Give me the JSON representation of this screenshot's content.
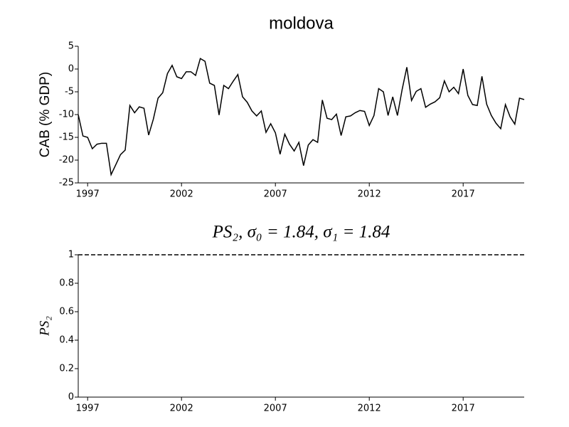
{
  "chart_data": [
    {
      "type": "line",
      "title": "moldova",
      "y_label": "CAB (% GDP)",
      "xlim": [
        1996.5,
        2020.25
      ],
      "xticks": [
        1997,
        2002,
        2007,
        2012,
        2017
      ],
      "ylim": [
        -25,
        5
      ],
      "yticks": [
        -25,
        -20,
        -15,
        -10,
        -5,
        0,
        5
      ],
      "x": [
        1996.5,
        1996.75,
        1997,
        1997.25,
        1997.5,
        1997.75,
        1998,
        1998.25,
        1998.5,
        1998.75,
        1999,
        1999.25,
        1999.5,
        1999.75,
        2000,
        2000.25,
        2000.5,
        2000.75,
        2001,
        2001.25,
        2001.5,
        2001.75,
        2002,
        2002.25,
        2002.5,
        2002.75,
        2003,
        2003.25,
        2003.5,
        2003.75,
        2004,
        2004.25,
        2004.5,
        2004.75,
        2005,
        2005.25,
        2005.5,
        2005.75,
        2006,
        2006.25,
        2006.5,
        2006.75,
        2007,
        2007.25,
        2007.5,
        2007.75,
        2008,
        2008.25,
        2008.5,
        2008.75,
        2009,
        2009.25,
        2009.5,
        2009.75,
        2010,
        2010.25,
        2010.5,
        2010.75,
        2011,
        2011.25,
        2011.5,
        2011.75,
        2012,
        2012.25,
        2012.5,
        2012.75,
        2013,
        2013.25,
        2013.5,
        2013.75,
        2014,
        2014.25,
        2014.5,
        2014.75,
        2015,
        2015.25,
        2015.5,
        2015.75,
        2016,
        2016.25,
        2016.5,
        2016.75,
        2017,
        2017.25,
        2017.5,
        2017.75,
        2018,
        2018.25,
        2018.5,
        2018.75,
        2019,
        2019.25,
        2019.5,
        2019.75,
        2020,
        2020.25
      ],
      "series": [
        {
          "color": "#000000",
          "values": [
            -10,
            -14.7,
            -15,
            -17.5,
            -16.5,
            -16.3,
            -16.3,
            -23.2,
            -21,
            -18.8,
            -17.8,
            -8,
            -9.6,
            -8.3,
            -8.6,
            -14.5,
            -11,
            -6.4,
            -5.2,
            -1,
            0.8,
            -1.7,
            -2.1,
            -0.6,
            -0.6,
            -1.4,
            2.3,
            1.7,
            -3.1,
            -3.6,
            -10.1,
            -3.6,
            -4.3,
            -2.7,
            -1.2,
            -6.1,
            -7.3,
            -9.2,
            -10.3,
            -9.2,
            -13.9,
            -12,
            -14,
            -18.7,
            -14.3,
            -16.5,
            -18,
            -16.1,
            -21.2,
            -16.7,
            -15.5,
            -16.1,
            -6.8,
            -10.8,
            -11.1,
            -9.9,
            -14.6,
            -10.5,
            -10.3,
            -9.6,
            -9.1,
            -9.3,
            -12.4,
            -10.2,
            -4.3,
            -5,
            -10.2,
            -6.1,
            -10.2,
            -4.5,
            0.4,
            -6.9,
            -4.9,
            -4.3,
            -8.4,
            -7.7,
            -7.2,
            -6.3,
            -2.6,
            -5,
            -4,
            -5.4,
            0,
            -5.8,
            -7.8,
            -8,
            -1.6,
            -7.7,
            -10.2,
            -11.9,
            -13.1,
            -7.8,
            -10.5,
            -12.1,
            -6.4,
            -6.7
          ]
        }
      ]
    },
    {
      "type": "line",
      "title": "PS₂, σ₀ = 1.84, σ₁ = 1.84",
      "y_label": "PS₂",
      "xlim": [
        1996.5,
        2020.25
      ],
      "xticks": [
        1997,
        2002,
        2007,
        2012,
        2017
      ],
      "ylim": [
        0,
        1
      ],
      "yticks": [
        0,
        0.2,
        0.4,
        0.6,
        0.8,
        1
      ],
      "x": [
        1996.5,
        2020.25
      ],
      "series": [
        {
          "color": "#000000",
          "dashed": true,
          "values": [
            1,
            1
          ]
        }
      ]
    }
  ]
}
